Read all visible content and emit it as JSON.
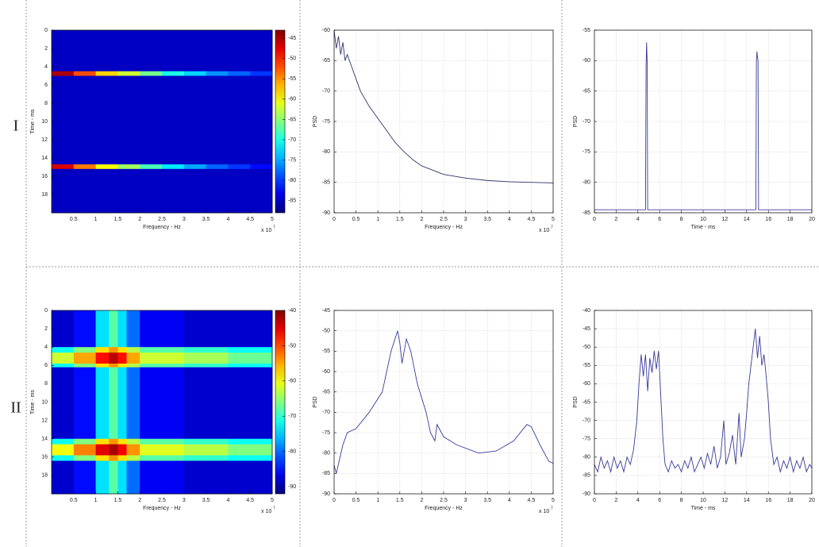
{
  "row_labels": [
    "I",
    "II"
  ],
  "chart_data": [
    {
      "type": "heatmap",
      "xlabel": "Frequency - Hz",
      "ylabel": "Time - ms",
      "x_scale_base": "x 10",
      "x_scale_exp": "7",
      "xlim": [
        0,
        5
      ],
      "xticks": [
        0.5,
        1,
        1.5,
        2,
        2.5,
        3,
        3.5,
        4,
        4.5,
        5
      ],
      "ylim": [
        0,
        20
      ],
      "yticks": [
        0,
        2,
        4,
        6,
        8,
        10,
        12,
        14,
        16,
        18
      ],
      "y_reversed": true,
      "grid": false,
      "xbins": [
        0,
        0.5,
        1,
        1.5,
        2,
        2.5,
        3,
        3.5,
        4,
        4.5,
        5
      ],
      "ybins": [
        0,
        4.5,
        5,
        14.7,
        15.2,
        20
      ],
      "z": [
        [
          -85,
          -85,
          -85,
          -85,
          -85,
          -85,
          -85,
          -85,
          -85,
          -85
        ],
        [
          -45,
          -52,
          -58,
          -62,
          -66,
          -70,
          -73,
          -76,
          -78,
          -80
        ],
        [
          -85,
          -85,
          -85,
          -85,
          -85,
          -85,
          -85,
          -85,
          -85,
          -85
        ],
        [
          -47,
          -54,
          -60,
          -64,
          -68,
          -72,
          -75,
          -78,
          -80,
          -82
        ],
        [
          -85,
          -85,
          -85,
          -85,
          -85,
          -85,
          -85,
          -85,
          -85,
          -85
        ]
      ],
      "clim": [
        -88,
        -43
      ],
      "cticks": [
        -45,
        -50,
        -55,
        -60,
        -65,
        -70,
        -75,
        -80,
        -85
      ]
    },
    {
      "type": "line",
      "xlabel": "Frequency - Hz",
      "ylabel": "PSD",
      "x_scale_base": "x 10",
      "x_scale_exp": "7",
      "xlim": [
        0,
        5
      ],
      "xticks": [
        0,
        0.5,
        1,
        1.5,
        2,
        2.5,
        3,
        3.5,
        4,
        4.5,
        5
      ],
      "ylim": [
        -90,
        -60
      ],
      "yticks": [
        -60,
        -65,
        -70,
        -75,
        -80,
        -85,
        -90
      ],
      "grid": true,
      "color": "#33336b",
      "x": [
        0,
        0.05,
        0.1,
        0.15,
        0.2,
        0.25,
        0.3,
        0.4,
        0.5,
        0.6,
        0.8,
        1,
        1.2,
        1.4,
        1.6,
        1.8,
        2,
        2.5,
        3,
        3.5,
        4,
        4.5,
        5
      ],
      "values": [
        -60,
        -63,
        -61,
        -64,
        -62,
        -65,
        -64,
        -66,
        -68,
        -70,
        -72.5,
        -74.5,
        -76.5,
        -78.5,
        -80,
        -81.3,
        -82.3,
        -83.7,
        -84.3,
        -84.7,
        -84.9,
        -85,
        -85.1
      ]
    },
    {
      "type": "line",
      "xlabel": "Time - ms",
      "ylabel": "PSD",
      "xlim": [
        0,
        20
      ],
      "xticks": [
        0,
        2,
        4,
        6,
        8,
        10,
        12,
        14,
        16,
        18,
        20
      ],
      "ylim": [
        -85,
        -55
      ],
      "yticks": [
        -55,
        -60,
        -65,
        -70,
        -75,
        -80,
        -85
      ],
      "grid": true,
      "color": "#3a3a9a",
      "x": [
        0,
        4.7,
        4.75,
        4.8,
        4.85,
        4.9,
        14.85,
        14.9,
        14.95,
        15,
        15.05,
        15.1,
        20
      ],
      "values": [
        -84.5,
        -84.5,
        -61,
        -57,
        -60,
        -84.5,
        -84.5,
        -60,
        -58.5,
        -59.5,
        -60,
        -84.5,
        -84.5
      ]
    },
    {
      "type": "heatmap",
      "xlabel": "Frequency - Hz",
      "ylabel": "Time - ms",
      "x_scale_base": "x 10",
      "x_scale_exp": "7",
      "xlim": [
        0,
        5
      ],
      "xticks": [
        0.5,
        1,
        1.5,
        2,
        2.5,
        3,
        3.5,
        4,
        4.5,
        5
      ],
      "ylim": [
        0,
        20
      ],
      "yticks": [
        0,
        2,
        4,
        6,
        8,
        10,
        12,
        14,
        16,
        18
      ],
      "y_reversed": true,
      "grid": false,
      "xbins": [
        0,
        0.5,
        1,
        1.3,
        1.5,
        1.7,
        2,
        3,
        4,
        5
      ],
      "ybins": [
        0,
        4,
        4.6,
        5.8,
        6.2,
        14,
        14.6,
        15.8,
        16.4,
        20
      ],
      "z": [
        [
          -88,
          -85,
          -74,
          -68,
          -74,
          -80,
          -86,
          -88,
          -88
        ],
        [
          -72,
          -66,
          -58,
          -54,
          -58,
          -63,
          -68,
          -70,
          -72
        ],
        [
          -62,
          -55,
          -47,
          -43,
          -47,
          -55,
          -62,
          -64,
          -67
        ],
        [
          -72,
          -66,
          -58,
          -54,
          -58,
          -63,
          -68,
          -70,
          -72
        ],
        [
          -88,
          -85,
          -74,
          -68,
          -74,
          -80,
          -86,
          -88,
          -88
        ],
        [
          -72,
          -66,
          -58,
          -54,
          -58,
          -63,
          -68,
          -70,
          -72
        ],
        [
          -60,
          -53,
          -45,
          -42,
          -46,
          -54,
          -61,
          -63,
          -66
        ],
        [
          -72,
          -66,
          -58,
          -54,
          -58,
          -63,
          -68,
          -70,
          -72
        ],
        [
          -88,
          -85,
          -74,
          -68,
          -74,
          -80,
          -86,
          -88,
          -88
        ]
      ],
      "clim": [
        -92,
        -40
      ],
      "cticks": [
        -40,
        -50,
        -60,
        -70,
        -80,
        -90
      ]
    },
    {
      "type": "line",
      "xlabel": "Frequency - Hz",
      "ylabel": "PSD",
      "x_scale_base": "x 10",
      "x_scale_exp": "7",
      "xlim": [
        0,
        5
      ],
      "xticks": [
        0,
        0.5,
        1,
        1.5,
        2,
        2.5,
        3,
        3.5,
        4,
        4.5,
        5
      ],
      "ylim": [
        -90,
        -45
      ],
      "yticks": [
        -45,
        -50,
        -55,
        -60,
        -65,
        -70,
        -75,
        -80,
        -85,
        -90
      ],
      "grid": true,
      "color": "#3a3a9a",
      "x": [
        0,
        0.05,
        0.2,
        0.3,
        0.5,
        0.8,
        1.1,
        1.3,
        1.45,
        1.5,
        1.55,
        1.65,
        1.75,
        1.9,
        2.1,
        2.2,
        2.3,
        2.35,
        2.5,
        2.8,
        3.3,
        3.7,
        4.1,
        4.4,
        4.5,
        4.7,
        4.9,
        5
      ],
      "values": [
        -83,
        -85,
        -78,
        -75,
        -74,
        -70,
        -65,
        -55,
        -50,
        -53,
        -58,
        -52,
        -55,
        -63,
        -70,
        -75,
        -77,
        -73,
        -76,
        -78,
        -80,
        -79.5,
        -77,
        -73,
        -73.5,
        -78,
        -82,
        -82.5
      ]
    },
    {
      "type": "line",
      "xlabel": "Time - ms",
      "ylabel": "PSD",
      "xlim": [
        0,
        20
      ],
      "xticks": [
        0,
        2,
        4,
        6,
        8,
        10,
        12,
        14,
        16,
        18,
        20
      ],
      "ylim": [
        -90,
        -40
      ],
      "yticks": [
        -40,
        -45,
        -50,
        -55,
        -60,
        -65,
        -70,
        -75,
        -80,
        -85,
        -90
      ],
      "grid": true,
      "color": "#3a3a9a",
      "x": [
        0,
        0.3,
        0.6,
        0.9,
        1.2,
        1.5,
        1.8,
        2.1,
        2.4,
        2.7,
        3,
        3.3,
        3.6,
        3.9,
        4.1,
        4.3,
        4.5,
        4.7,
        4.9,
        5.1,
        5.3,
        5.5,
        5.7,
        5.9,
        6.1,
        6.3,
        6.5,
        6.8,
        7.1,
        7.4,
        7.7,
        8,
        8.3,
        8.6,
        8.9,
        9.2,
        9.5,
        9.8,
        10.1,
        10.4,
        10.7,
        11,
        11.3,
        11.6,
        11.9,
        12.1,
        12.4,
        12.7,
        13,
        13.3,
        13.5,
        13.8,
        14,
        14.2,
        14.4,
        14.6,
        14.8,
        15,
        15.2,
        15.4,
        15.6,
        15.8,
        16,
        16.2,
        16.5,
        16.8,
        17.1,
        17.4,
        17.7,
        18,
        18.3,
        18.6,
        18.9,
        19.2,
        19.5,
        19.8,
        20
      ],
      "values": [
        -82,
        -84,
        -80,
        -83,
        -81,
        -84,
        -80,
        -83,
        -81,
        -84,
        -80,
        -82,
        -78,
        -70,
        -60,
        -52,
        -58,
        -52,
        -62,
        -53,
        -57,
        -51,
        -56,
        -51,
        -63,
        -75,
        -82,
        -84,
        -81,
        -83,
        -82,
        -84,
        -81,
        -83,
        -80,
        -84,
        -82,
        -80,
        -83,
        -79,
        -82,
        -77,
        -83,
        -80,
        -70,
        -82,
        -79,
        -74,
        -82,
        -68,
        -80,
        -75,
        -68,
        -60,
        -55,
        -50,
        -45,
        -53,
        -47,
        -55,
        -52,
        -58,
        -65,
        -75,
        -82,
        -80,
        -84,
        -81,
        -83,
        -80,
        -84,
        -81,
        -83,
        -80,
        -84,
        -82,
        -83
      ]
    }
  ]
}
